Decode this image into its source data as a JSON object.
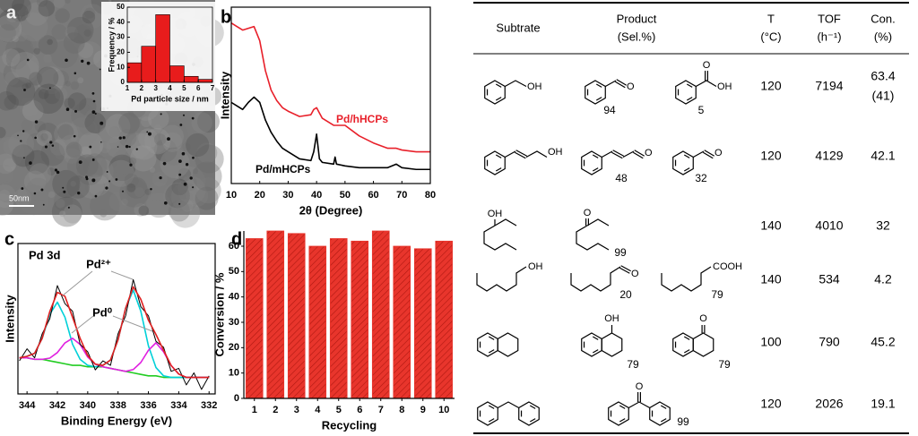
{
  "tem_image": {
    "panel": "a",
    "scale_bar": "50nm"
  },
  "chart_data": [
    {
      "type": "histogram",
      "bins": [
        1,
        2,
        3,
        4,
        5,
        6,
        7
      ],
      "values": [
        13,
        24,
        45,
        11,
        4,
        2
      ],
      "color": "#e81c1c",
      "xlim": [
        1,
        7
      ],
      "xticks": [
        1,
        2,
        3,
        4,
        5,
        6,
        7
      ],
      "ylim": [
        0,
        50
      ],
      "yticks": [
        0,
        10,
        20,
        30,
        40,
        50
      ],
      "xlabel": "Pd particle size / nm",
      "ylabel": "Frequency / %"
    },
    {
      "type": "line",
      "panel": "b",
      "x": [
        10,
        12,
        14,
        16,
        18,
        20,
        22,
        24,
        26,
        28,
        30,
        34,
        38,
        39,
        40,
        41,
        42,
        46,
        46.5,
        47,
        50,
        55,
        60,
        65,
        68,
        70,
        75,
        80
      ],
      "series": [
        {
          "name": "Pd/hHCPs",
          "color": "#e8202a",
          "values": [
            91,
            89,
            87,
            88,
            89,
            81,
            64,
            53,
            47,
            43,
            41,
            38,
            39,
            42,
            43,
            40,
            37,
            33,
            33,
            33,
            33,
            27,
            23,
            20,
            20,
            19,
            18,
            18
          ]
        },
        {
          "name": "Pd/mHCPs",
          "color": "#000000",
          "values": [
            46,
            44,
            42,
            46,
            49,
            46,
            36,
            29,
            24,
            20,
            18,
            14,
            13,
            18,
            28,
            14,
            12,
            11,
            15,
            11,
            10,
            9,
            9,
            9,
            11,
            9,
            8,
            8
          ]
        }
      ],
      "xlim": [
        10,
        80
      ],
      "xticks": [
        10,
        20,
        30,
        40,
        50,
        60,
        70,
        80
      ],
      "ylim": [
        0,
        100
      ],
      "xlabel": "2θ (Degree)",
      "ylabel": "Intensity"
    },
    {
      "type": "line",
      "panel": "c",
      "title": "Pd 3d",
      "annotations": [
        "Pd²⁺",
        "Pd⁰"
      ],
      "x": [
        344.5,
        344,
        343.5,
        343,
        342.5,
        342,
        341.5,
        341,
        340.5,
        340,
        339.5,
        339,
        338.5,
        338,
        337.5,
        337,
        336.5,
        336,
        335.5,
        335,
        334.5,
        334,
        333.5,
        333,
        332.5,
        332
      ],
      "series": [
        {
          "color": "#22cc22",
          "values": [
            24,
            24,
            23,
            23,
            22,
            21,
            20,
            19,
            19,
            18,
            18,
            18,
            17,
            16,
            15,
            14,
            13,
            12,
            12,
            11,
            11,
            11,
            11,
            11,
            11,
            11
          ]
        },
        {
          "color": "#00d0d8",
          "values": [
            24,
            25,
            27,
            37,
            53,
            61,
            51,
            33,
            23,
            19,
            18,
            19,
            22.5,
            36,
            57,
            69,
            55,
            32,
            17.5,
            12,
            11,
            11,
            11,
            11,
            11,
            11
          ]
        },
        {
          "color": "#e020e0",
          "values": [
            24,
            24,
            23,
            23,
            23.8,
            27.5,
            33.9,
            37,
            32.9,
            24.5,
            19.8,
            18,
            17,
            16,
            15,
            16.2,
            20.9,
            29,
            34,
            28,
            18.9,
            13.2,
            11,
            11,
            11,
            11
          ]
        },
        {
          "color": "#000000",
          "values": [
            22,
            30,
            24,
            40,
            50,
            72,
            60,
            55,
            33,
            28,
            16,
            22,
            19,
            40,
            52,
            76,
            58,
            52,
            35,
            31,
            15,
            17,
            6,
            14,
            3,
            12
          ]
        },
        {
          "color": "#e02020",
          "values": [
            24,
            25,
            27,
            37,
            54.8,
            67.5,
            64.9,
            51,
            36.9,
            25.5,
            19.8,
            19,
            22.5,
            36,
            57,
            71.2,
            62.9,
            49,
            39.5,
            29,
            18.9,
            13.2,
            11,
            11,
            11,
            11
          ]
        }
      ],
      "xlim": [
        344.6,
        331.6
      ],
      "xticks": [
        344,
        342,
        340,
        338,
        336,
        334,
        332
      ],
      "ylim": [
        0,
        100
      ],
      "xlabel": "Binding Energy (eV)",
      "ylabel": "Intensity"
    },
    {
      "type": "bar",
      "panel": "d",
      "categories": [
        "1",
        "2",
        "3",
        "4",
        "5",
        "6",
        "7",
        "8",
        "9",
        "10"
      ],
      "values": [
        63,
        66,
        65,
        60,
        63,
        62,
        66,
        60,
        59,
        62
      ],
      "color": "#e8352c",
      "ylim": [
        0,
        66
      ],
      "yticks": [
        0,
        10,
        20,
        30,
        40,
        50,
        60
      ],
      "xlabel": "Recycling",
      "ylabel": "Conversion / %"
    }
  ],
  "table": {
    "header": [
      [
        "Subtrate"
      ],
      [
        "Product",
        "(Sel.%)"
      ],
      [
        "T",
        "(°C)"
      ],
      [
        "TOF",
        "(h⁻¹)"
      ],
      [
        "Con.",
        "(%)"
      ]
    ],
    "rows": [
      {
        "substrate": {
          "atoms": [
            "OH"
          ]
        },
        "products": [
          {
            "atoms": [
              "O"
            ],
            "selectivity": 94
          },
          {
            "atoms": [
              "O",
              "OH"
            ],
            "selectivity": 5
          }
        ],
        "T": 120,
        "TOF": 7194,
        "conversion": 63.4,
        "conversion_paren": "(41)"
      },
      {
        "substrate": {
          "atoms": [
            "OH"
          ]
        },
        "products": [
          {
            "atoms": [
              "O"
            ],
            "selectivity": 48
          },
          {
            "atoms": [
              "O"
            ],
            "selectivity": 32
          }
        ],
        "T": 120,
        "TOF": 4129,
        "conversion": 42.1
      },
      {
        "substrate": {
          "atoms": [
            "OH"
          ]
        },
        "products": [
          {
            "atoms": [
              "O"
            ],
            "selectivity": 99
          }
        ],
        "T": 140,
        "TOF": 4010,
        "conversion": 32
      },
      {
        "substrate": {
          "atoms": [
            "OH"
          ]
        },
        "products": [
          {
            "atoms": [
              "O"
            ],
            "selectivity": 20
          },
          {
            "atoms": [
              "COOH"
            ],
            "selectivity": 79
          }
        ],
        "T": 140,
        "TOF": 534,
        "conversion": 4.2
      },
      {
        "substrate": {},
        "products": [
          {
            "atoms": [
              "OH"
            ],
            "selectivity": 79
          },
          {
            "atoms": [
              "O"
            ],
            "selectivity": 79
          }
        ],
        "T": 100,
        "TOF": 790,
        "conversion": 45.2
      },
      {
        "substrate": {},
        "products": [
          {
            "atoms": [
              "O"
            ],
            "selectivity": 99
          }
        ],
        "T": 120,
        "TOF": 2026,
        "conversion": 19.1
      }
    ]
  }
}
